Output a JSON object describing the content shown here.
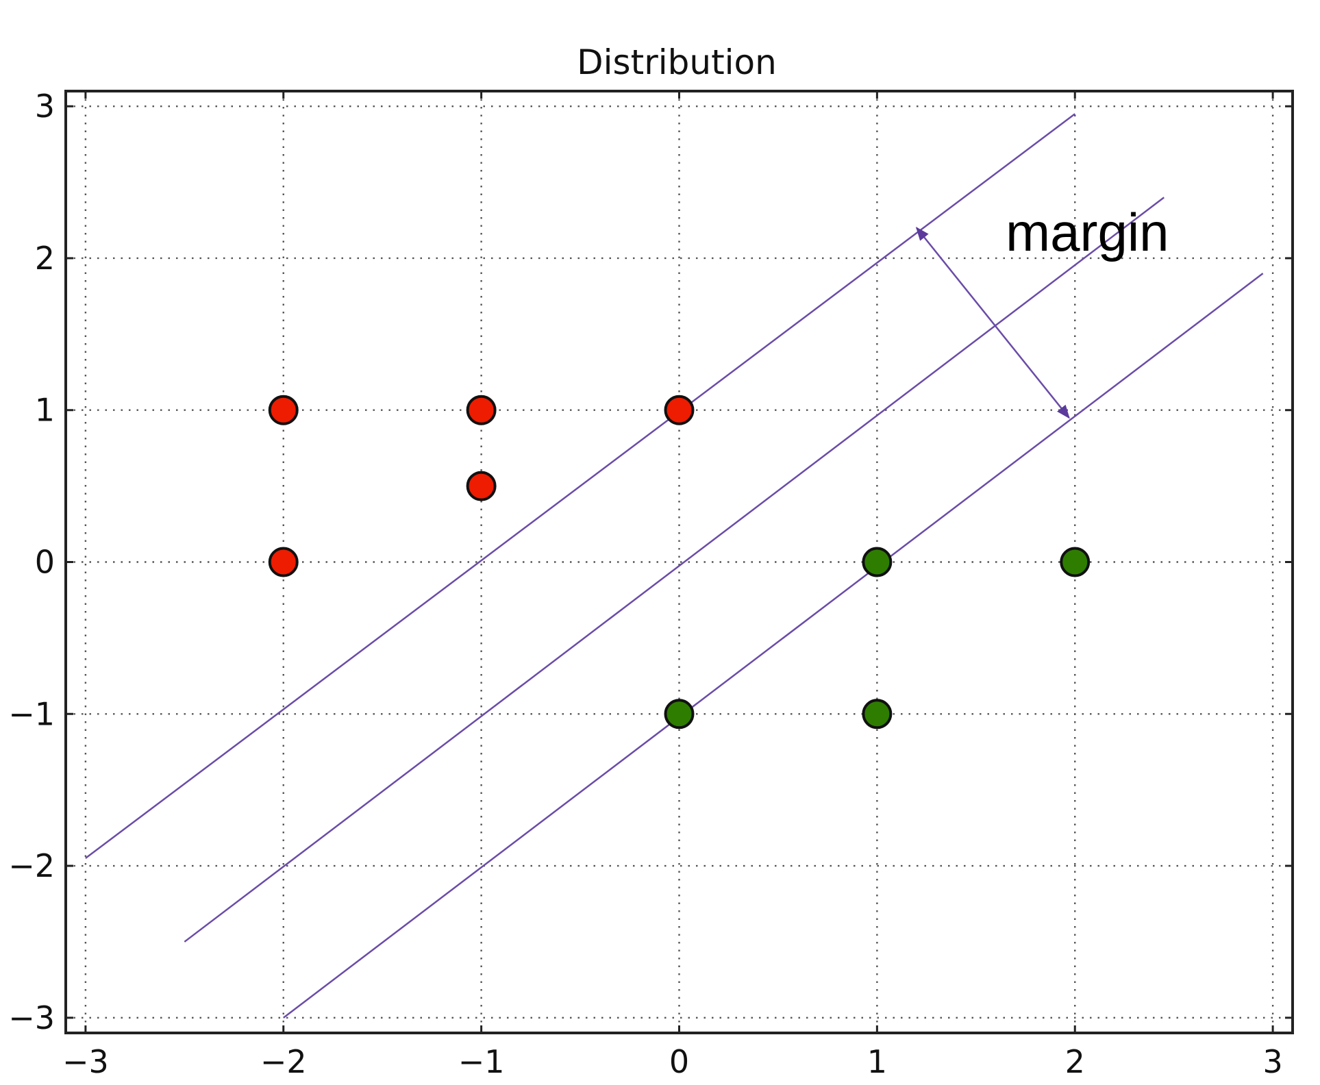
{
  "chart_data": {
    "type": "scatter",
    "title": "Distribution",
    "xlabel": "",
    "ylabel": "",
    "xlim": [
      -3.1,
      3.1
    ],
    "ylim": [
      -3.1,
      3.1
    ],
    "xticks": [
      -3,
      -2,
      -1,
      0,
      1,
      2,
      3
    ],
    "yticks": [
      -3,
      -2,
      -1,
      0,
      1,
      2,
      3
    ],
    "xtick_labels": [
      "−3",
      "−2",
      "−1",
      "0",
      "1",
      "2",
      "3"
    ],
    "ytick_labels": [
      "−3",
      "−2",
      "−1",
      "0",
      "1",
      "2",
      "3"
    ],
    "grid": true,
    "series": [
      {
        "color": "#ee1c00",
        "points": [
          {
            "x": -2,
            "y": 1
          },
          {
            "x": -1,
            "y": 1
          },
          {
            "x": 0,
            "y": 1
          },
          {
            "x": -1,
            "y": 0.5
          },
          {
            "x": -2,
            "y": 0
          }
        ]
      },
      {
        "color": "#2e7d00",
        "points": [
          {
            "x": 1,
            "y": 0
          },
          {
            "x": 2,
            "y": 0
          },
          {
            "x": 0,
            "y": -1
          },
          {
            "x": 1,
            "y": -1
          }
        ]
      }
    ],
    "lines": [
      {
        "color": "#6a4ca8",
        "x1": -3,
        "y1": -1.95,
        "x2": 2,
        "y2": 2.95
      },
      {
        "color": "#6a4ca8",
        "x1": -2.5,
        "y1": -2.5,
        "x2": 2.45,
        "y2": 2.4
      },
      {
        "color": "#6a4ca8",
        "x1": -2,
        "y1": -3,
        "x2": 2.95,
        "y2": 1.9
      }
    ],
    "annotations": [
      {
        "text": "margin",
        "x": 1.65,
        "y": 2.05,
        "arrow": {
          "x1": 1.2,
          "y1": 2.2,
          "x2": 1.97,
          "y2": 0.95,
          "double_headed": true,
          "color": "#6a4ca8"
        }
      }
    ]
  }
}
